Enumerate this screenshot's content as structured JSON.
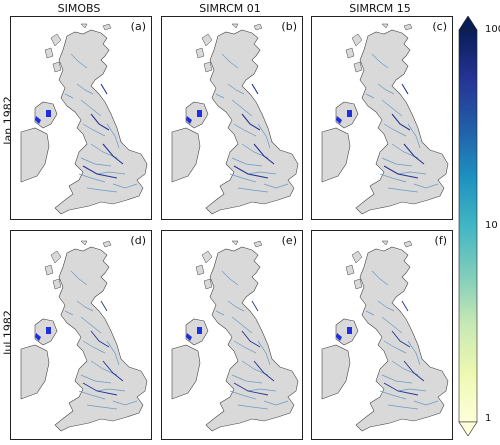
{
  "columns": [
    {
      "id": "simobs",
      "title": "SIMOBS"
    },
    {
      "id": "simrcm01",
      "title": "SIMRCM 01"
    },
    {
      "id": "simrcm15",
      "title": "SIMRCM 15"
    }
  ],
  "rows": [
    {
      "id": "jan1982",
      "title": "Jan 1982"
    },
    {
      "id": "jul1982",
      "title": "Jul 1982"
    }
  ],
  "panels": [
    {
      "label": "(a)"
    },
    {
      "label": "(b)"
    },
    {
      "label": "(c)"
    },
    {
      "label": "(d)"
    },
    {
      "label": "(e)"
    },
    {
      "label": "(f)"
    }
  ],
  "colorbar": {
    "scale": "log",
    "range": [
      1,
      100
    ],
    "ticks": [
      "100",
      "10",
      "1"
    ],
    "extend": "both",
    "colors": [
      "#ffffd9",
      "#edf8b1",
      "#c7e9b4",
      "#7fcdbb",
      "#41b6c4",
      "#1d91c0",
      "#225ea8",
      "#253494",
      "#081d58"
    ]
  },
  "colors": {
    "land": "#d9d9d9",
    "coast": "#444444",
    "river_light": "#6b9ac4",
    "river_dark": "#253494",
    "lake": "#1f2fe0"
  }
}
